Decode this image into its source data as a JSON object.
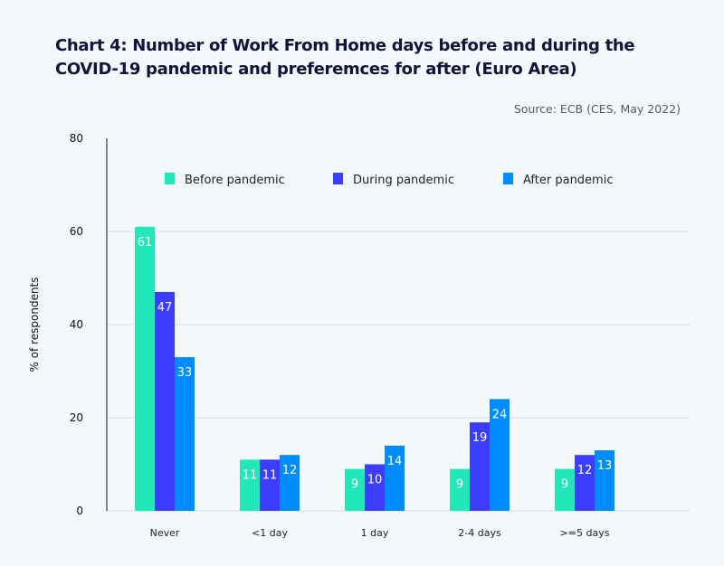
{
  "chart_data": {
    "type": "bar",
    "title": "Chart 4: Number of Work From Home days before and during the COVID-19 pandemic and preferemces for after (Euro Area)",
    "source": "Source: ECB (CES, May 2022)",
    "xlabel": "",
    "ylabel": "% of respondents",
    "ylim": [
      0,
      80
    ],
    "yticks": [
      0,
      20,
      40,
      60,
      80
    ],
    "grid": true,
    "legend_position": "top",
    "categories": [
      "Never",
      "<1 day",
      "1 day",
      "2-4 days",
      ">=5 days"
    ],
    "series": [
      {
        "name": "Before pandemic",
        "color": "#20e8b8",
        "values": [
          61,
          11,
          9,
          9,
          9
        ]
      },
      {
        "name": "During pandemic",
        "color": "#3d3dff",
        "values": [
          47,
          11,
          10,
          19,
          12
        ]
      },
      {
        "name": "After pandemic",
        "color": "#008cff",
        "values": [
          33,
          12,
          14,
          24,
          13
        ]
      }
    ]
  }
}
